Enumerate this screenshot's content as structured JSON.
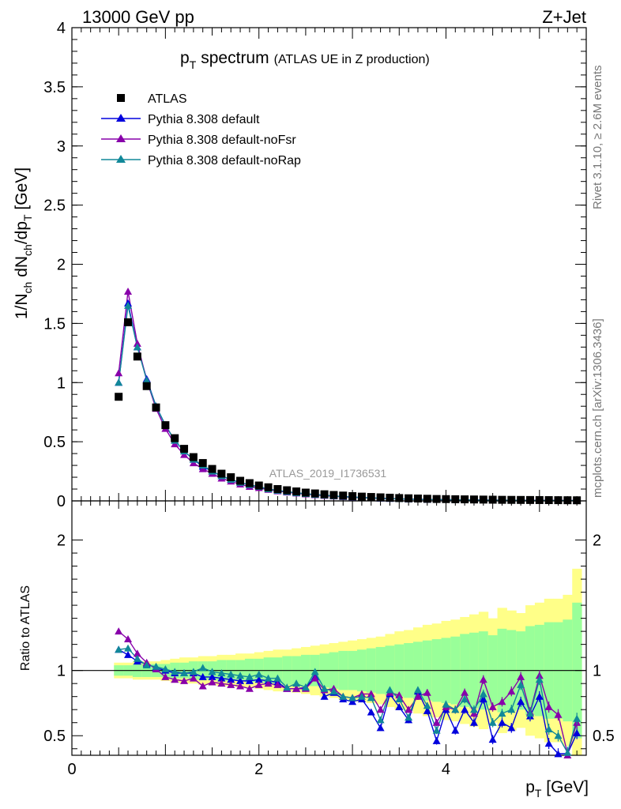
{
  "header": {
    "left": "13000 GeV pp",
    "right": "Z+Jet"
  },
  "side": {
    "rivet": "Rivet 3.1.10, ≥ 2.6M events",
    "mcplots": "mcplots.cern.ch [arXiv:1306.3436]"
  },
  "watermark": "ATLAS_2019_I1736531",
  "colors": {
    "data": "#000000",
    "default": "#0000dd",
    "noFsr": "#8800aa",
    "noRap": "#118899",
    "band_outer": "#ffff88",
    "band_inner": "#99ff99"
  },
  "chart_data": [
    {
      "type": "scatter",
      "title": "p_T spectrum (ATLAS UE in Z production)",
      "title_main": "p",
      "title_sub": "T",
      "title_word": "spectrum",
      "title_note": "(ATLAS UE in Z production)",
      "ylabel": "1/N_ch dN_ch/dp_T [GeV]",
      "ylabel_parts": [
        "1/N",
        "ch",
        " dN",
        "ch",
        "/dp",
        "T",
        " [GeV]"
      ],
      "xlim": [
        0,
        5.5
      ],
      "ylim": [
        0,
        4
      ],
      "yticks": [
        0,
        0.5,
        1,
        1.5,
        2,
        2.5,
        3,
        3.5,
        4
      ],
      "ytick_labels": [
        "0",
        "0.5",
        "1",
        "1.5",
        "2",
        "2.5",
        "3",
        "3.5",
        "4"
      ],
      "legend_position": "top-left",
      "x": [
        0.5,
        0.6,
        0.7,
        0.8,
        0.9,
        1.0,
        1.1,
        1.2,
        1.3,
        1.4,
        1.5,
        1.6,
        1.7,
        1.8,
        1.9,
        2.0,
        2.1,
        2.2,
        2.3,
        2.4,
        2.5,
        2.6,
        2.7,
        2.8,
        2.9,
        3.0,
        3.1,
        3.2,
        3.3,
        3.4,
        3.5,
        3.6,
        3.7,
        3.8,
        3.9,
        4.0,
        4.1,
        4.2,
        4.3,
        4.4,
        4.5,
        4.6,
        4.7,
        4.8,
        4.9,
        5.0,
        5.1,
        5.2,
        5.3,
        5.4
      ],
      "series": [
        {
          "name": "ATLAS",
          "marker": "square",
          "values": [
            0.88,
            1.51,
            1.22,
            0.97,
            0.79,
            0.64,
            0.53,
            0.44,
            0.37,
            0.32,
            0.27,
            0.23,
            0.2,
            0.17,
            0.15,
            0.13,
            0.115,
            0.1,
            0.09,
            0.08,
            0.07,
            0.063,
            0.056,
            0.05,
            0.045,
            0.04,
            0.036,
            0.033,
            0.03,
            0.027,
            0.024,
            0.022,
            0.02,
            0.018,
            0.016,
            0.015,
            0.014,
            0.013,
            0.012,
            0.011,
            0.01,
            0.009,
            0.0085,
            0.008,
            0.0075,
            0.007,
            0.0065,
            0.006,
            0.0055,
            0.005
          ]
        },
        {
          "name": "Pythia 8.308 default",
          "marker": "triangle",
          "values": [
            1.0,
            1.67,
            1.3,
            1.03,
            0.8,
            0.64,
            0.51,
            0.42,
            0.35,
            0.29,
            0.25,
            0.21,
            0.18,
            0.155,
            0.135,
            0.12,
            0.1,
            0.088,
            0.077,
            0.068,
            0.06,
            0.053,
            0.047,
            0.041,
            0.036,
            0.032,
            0.028,
            0.025,
            0.022,
            0.019,
            0.017,
            0.015,
            0.013,
            0.012,
            0.011,
            0.01,
            0.009,
            0.008,
            0.007,
            0.0065,
            0.006,
            0.0055,
            0.005,
            0.0045,
            0.004,
            0.0038,
            0.0035,
            0.0032,
            0.003,
            0.0028
          ]
        },
        {
          "name": "Pythia 8.308 default-noFsr",
          "marker": "triangle",
          "values": [
            1.08,
            1.77,
            1.33,
            1.02,
            0.78,
            0.61,
            0.48,
            0.39,
            0.32,
            0.27,
            0.23,
            0.19,
            0.165,
            0.14,
            0.12,
            0.11,
            0.095,
            0.083,
            0.073,
            0.064,
            0.057,
            0.05,
            0.044,
            0.039,
            0.034,
            0.03,
            0.027,
            0.024,
            0.021,
            0.019,
            0.017,
            0.015,
            0.014,
            0.012,
            0.011,
            0.01,
            0.009,
            0.0085,
            0.0075,
            0.007,
            0.0065,
            0.006,
            0.0055,
            0.005,
            0.0047,
            0.0044,
            0.004,
            0.0037,
            0.0034,
            0.003
          ]
        },
        {
          "name": "Pythia 8.308 default-noRap",
          "marker": "triangle",
          "values": [
            1.0,
            1.65,
            1.3,
            1.02,
            0.8,
            0.64,
            0.51,
            0.42,
            0.35,
            0.3,
            0.25,
            0.21,
            0.18,
            0.155,
            0.135,
            0.12,
            0.1,
            0.088,
            0.077,
            0.068,
            0.06,
            0.053,
            0.047,
            0.041,
            0.036,
            0.032,
            0.028,
            0.025,
            0.022,
            0.019,
            0.017,
            0.015,
            0.013,
            0.012,
            0.011,
            0.01,
            0.009,
            0.008,
            0.007,
            0.0065,
            0.006,
            0.0055,
            0.005,
            0.0045,
            0.004,
            0.0038,
            0.0035,
            0.0032,
            0.003,
            0.0028
          ]
        }
      ]
    },
    {
      "type": "scatter",
      "ylabel": "Ratio to ATLAS",
      "xlabel": "p_T [GeV]",
      "xlabel_parts": [
        "p",
        "T",
        " [GeV]"
      ],
      "xlim": [
        0,
        5.5
      ],
      "ylim": [
        0.35,
        2.3
      ],
      "xticks": [
        0,
        2,
        4
      ],
      "xtick_labels": [
        "0",
        "2",
        "4"
      ],
      "yticks": [
        0.5,
        1,
        2
      ],
      "ytick_labels": [
        "0.5",
        "1",
        "2"
      ],
      "reference_line": 1,
      "x": [
        0.5,
        0.6,
        0.7,
        0.8,
        0.9,
        1.0,
        1.1,
        1.2,
        1.3,
        1.4,
        1.5,
        1.6,
        1.7,
        1.8,
        1.9,
        2.0,
        2.1,
        2.2,
        2.3,
        2.4,
        2.5,
        2.6,
        2.7,
        2.8,
        2.9,
        3.0,
        3.1,
        3.2,
        3.3,
        3.4,
        3.5,
        3.6,
        3.7,
        3.8,
        3.9,
        4.0,
        4.1,
        4.2,
        4.3,
        4.4,
        4.5,
        4.6,
        4.7,
        4.8,
        4.9,
        5.0,
        5.1,
        5.2,
        5.3,
        5.4
      ],
      "band_outer": [
        0.06,
        0.06,
        0.07,
        0.07,
        0.07,
        0.08,
        0.09,
        0.1,
        0.1,
        0.11,
        0.11,
        0.12,
        0.12,
        0.13,
        0.13,
        0.14,
        0.15,
        0.16,
        0.16,
        0.17,
        0.18,
        0.19,
        0.2,
        0.21,
        0.22,
        0.23,
        0.24,
        0.25,
        0.26,
        0.28,
        0.3,
        0.31,
        0.33,
        0.35,
        0.36,
        0.38,
        0.39,
        0.41,
        0.43,
        0.45,
        0.4,
        0.48,
        0.46,
        0.44,
        0.5,
        0.52,
        0.55,
        0.55,
        0.58,
        0.78
      ],
      "band_inner": [
        0.04,
        0.04,
        0.05,
        0.05,
        0.05,
        0.05,
        0.06,
        0.06,
        0.07,
        0.07,
        0.07,
        0.08,
        0.08,
        0.08,
        0.09,
        0.09,
        0.1,
        0.1,
        0.11,
        0.11,
        0.12,
        0.12,
        0.13,
        0.14,
        0.15,
        0.15,
        0.16,
        0.17,
        0.18,
        0.19,
        0.2,
        0.21,
        0.22,
        0.23,
        0.24,
        0.25,
        0.26,
        0.28,
        0.29,
        0.3,
        0.27,
        0.32,
        0.31,
        0.3,
        0.34,
        0.35,
        0.37,
        0.37,
        0.39,
        0.52
      ],
      "series": [
        {
          "name": "Pythia 8.308 default",
          "values": [
            1.16,
            1.12,
            1.07,
            1.05,
            1.02,
            1.0,
            0.98,
            0.98,
            0.98,
            0.95,
            0.95,
            0.94,
            0.93,
            0.92,
            0.92,
            0.93,
            0.92,
            0.91,
            0.86,
            0.86,
            0.87,
            0.95,
            0.8,
            0.83,
            0.78,
            0.76,
            0.78,
            0.68,
            0.56,
            0.82,
            0.72,
            0.62,
            0.84,
            0.69,
            0.46,
            0.7,
            0.54,
            0.7,
            0.6,
            0.78,
            0.47,
            0.6,
            0.56,
            0.76,
            0.65,
            0.8,
            0.44,
            0.36,
            0.34,
            0.52
          ]
        },
        {
          "name": "Pythia 8.308 default-noFsr",
          "values": [
            1.3,
            1.24,
            1.13,
            1.06,
            1.01,
            0.95,
            0.93,
            0.92,
            0.94,
            0.88,
            0.91,
            0.9,
            0.89,
            0.88,
            0.86,
            0.89,
            0.9,
            0.89,
            0.86,
            0.86,
            0.86,
            0.94,
            0.85,
            0.86,
            0.8,
            0.79,
            0.82,
            0.82,
            0.7,
            0.83,
            0.81,
            0.7,
            0.8,
            0.83,
            0.6,
            0.72,
            0.7,
            0.83,
            0.67,
            0.93,
            0.72,
            0.76,
            0.84,
            0.95,
            0.68,
            0.96,
            0.72,
            0.66,
            0.35,
            0.6
          ]
        },
        {
          "name": "Pythia 8.308 default-noRap",
          "values": [
            1.16,
            1.17,
            1.09,
            1.04,
            1.03,
            1.01,
            0.99,
            0.98,
            0.99,
            1.02,
            0.99,
            0.98,
            0.97,
            0.96,
            0.95,
            0.97,
            0.94,
            0.94,
            0.87,
            0.9,
            0.87,
            0.99,
            0.86,
            0.84,
            0.8,
            0.79,
            0.8,
            0.79,
            0.62,
            0.85,
            0.78,
            0.64,
            0.85,
            0.73,
            0.54,
            0.74,
            0.7,
            0.78,
            0.7,
            0.82,
            0.6,
            0.67,
            0.7,
            0.89,
            0.67,
            0.93,
            0.55,
            0.5,
            0.37,
            0.63
          ]
        }
      ]
    }
  ]
}
